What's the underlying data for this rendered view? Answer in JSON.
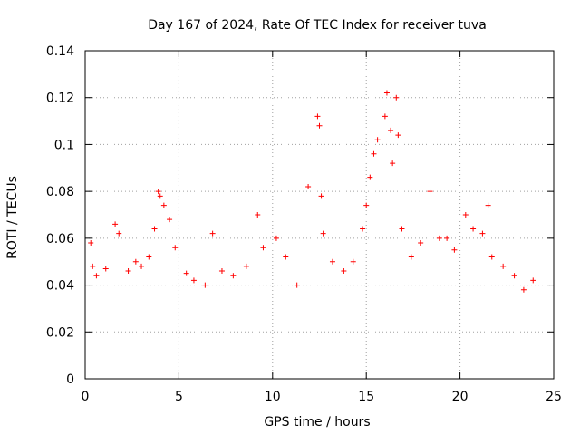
{
  "chart_data": {
    "type": "scatter",
    "title": "Day 167 of 2024, Rate Of TEC Index for receiver tuva",
    "xlabel": "GPS time / hours",
    "ylabel": "ROTI / TECUs",
    "xlim": [
      0,
      25
    ],
    "ylim": [
      0,
      0.14
    ],
    "grid": true,
    "marker": "plus",
    "color": "#ff0000",
    "x_ticks": [
      "0",
      "5",
      "10",
      "15",
      "20",
      "25"
    ],
    "y_ticks": [
      "0",
      "0.02",
      "0.04",
      "0.06",
      "0.08",
      "0.1",
      "0.12",
      "0.14"
    ],
    "x_tick_values": [
      0,
      5,
      10,
      15,
      20,
      25
    ],
    "y_tick_values": [
      0,
      0.02,
      0.04,
      0.06,
      0.08,
      0.1,
      0.12,
      0.14
    ],
    "series": [
      {
        "points": [
          [
            0.3,
            0.058
          ],
          [
            0.4,
            0.048
          ],
          [
            0.6,
            0.044
          ],
          [
            1.1,
            0.047
          ],
          [
            1.6,
            0.066
          ],
          [
            1.8,
            0.062
          ],
          [
            2.3,
            0.046
          ],
          [
            2.7,
            0.05
          ],
          [
            3.0,
            0.048
          ],
          [
            3.4,
            0.052
          ],
          [
            3.7,
            0.064
          ],
          [
            3.9,
            0.08
          ],
          [
            4.0,
            0.078
          ],
          [
            4.2,
            0.074
          ],
          [
            4.5,
            0.068
          ],
          [
            4.8,
            0.056
          ],
          [
            5.4,
            0.045
          ],
          [
            5.8,
            0.042
          ],
          [
            6.4,
            0.04
          ],
          [
            6.8,
            0.062
          ],
          [
            7.3,
            0.046
          ],
          [
            7.9,
            0.044
          ],
          [
            8.6,
            0.048
          ],
          [
            9.2,
            0.07
          ],
          [
            9.5,
            0.056
          ],
          [
            10.2,
            0.06
          ],
          [
            10.7,
            0.052
          ],
          [
            11.3,
            0.04
          ],
          [
            11.9,
            0.082
          ],
          [
            12.4,
            0.112
          ],
          [
            12.5,
            0.108
          ],
          [
            12.6,
            0.078
          ],
          [
            12.7,
            0.062
          ],
          [
            13.2,
            0.05
          ],
          [
            13.8,
            0.046
          ],
          [
            14.3,
            0.05
          ],
          [
            14.8,
            0.064
          ],
          [
            15.0,
            0.074
          ],
          [
            15.2,
            0.086
          ],
          [
            15.4,
            0.096
          ],
          [
            15.6,
            0.102
          ],
          [
            16.0,
            0.112
          ],
          [
            16.1,
            0.122
          ],
          [
            16.3,
            0.106
          ],
          [
            16.4,
            0.092
          ],
          [
            16.6,
            0.12
          ],
          [
            16.7,
            0.104
          ],
          [
            16.9,
            0.064
          ],
          [
            17.4,
            0.052
          ],
          [
            17.9,
            0.058
          ],
          [
            18.4,
            0.08
          ],
          [
            18.9,
            0.06
          ],
          [
            19.3,
            0.06
          ],
          [
            19.7,
            0.055
          ],
          [
            20.3,
            0.07
          ],
          [
            20.7,
            0.064
          ],
          [
            21.2,
            0.062
          ],
          [
            21.5,
            0.074
          ],
          [
            21.7,
            0.052
          ],
          [
            22.3,
            0.048
          ],
          [
            22.9,
            0.044
          ],
          [
            23.4,
            0.038
          ],
          [
            23.9,
            0.042
          ]
        ]
      }
    ]
  }
}
